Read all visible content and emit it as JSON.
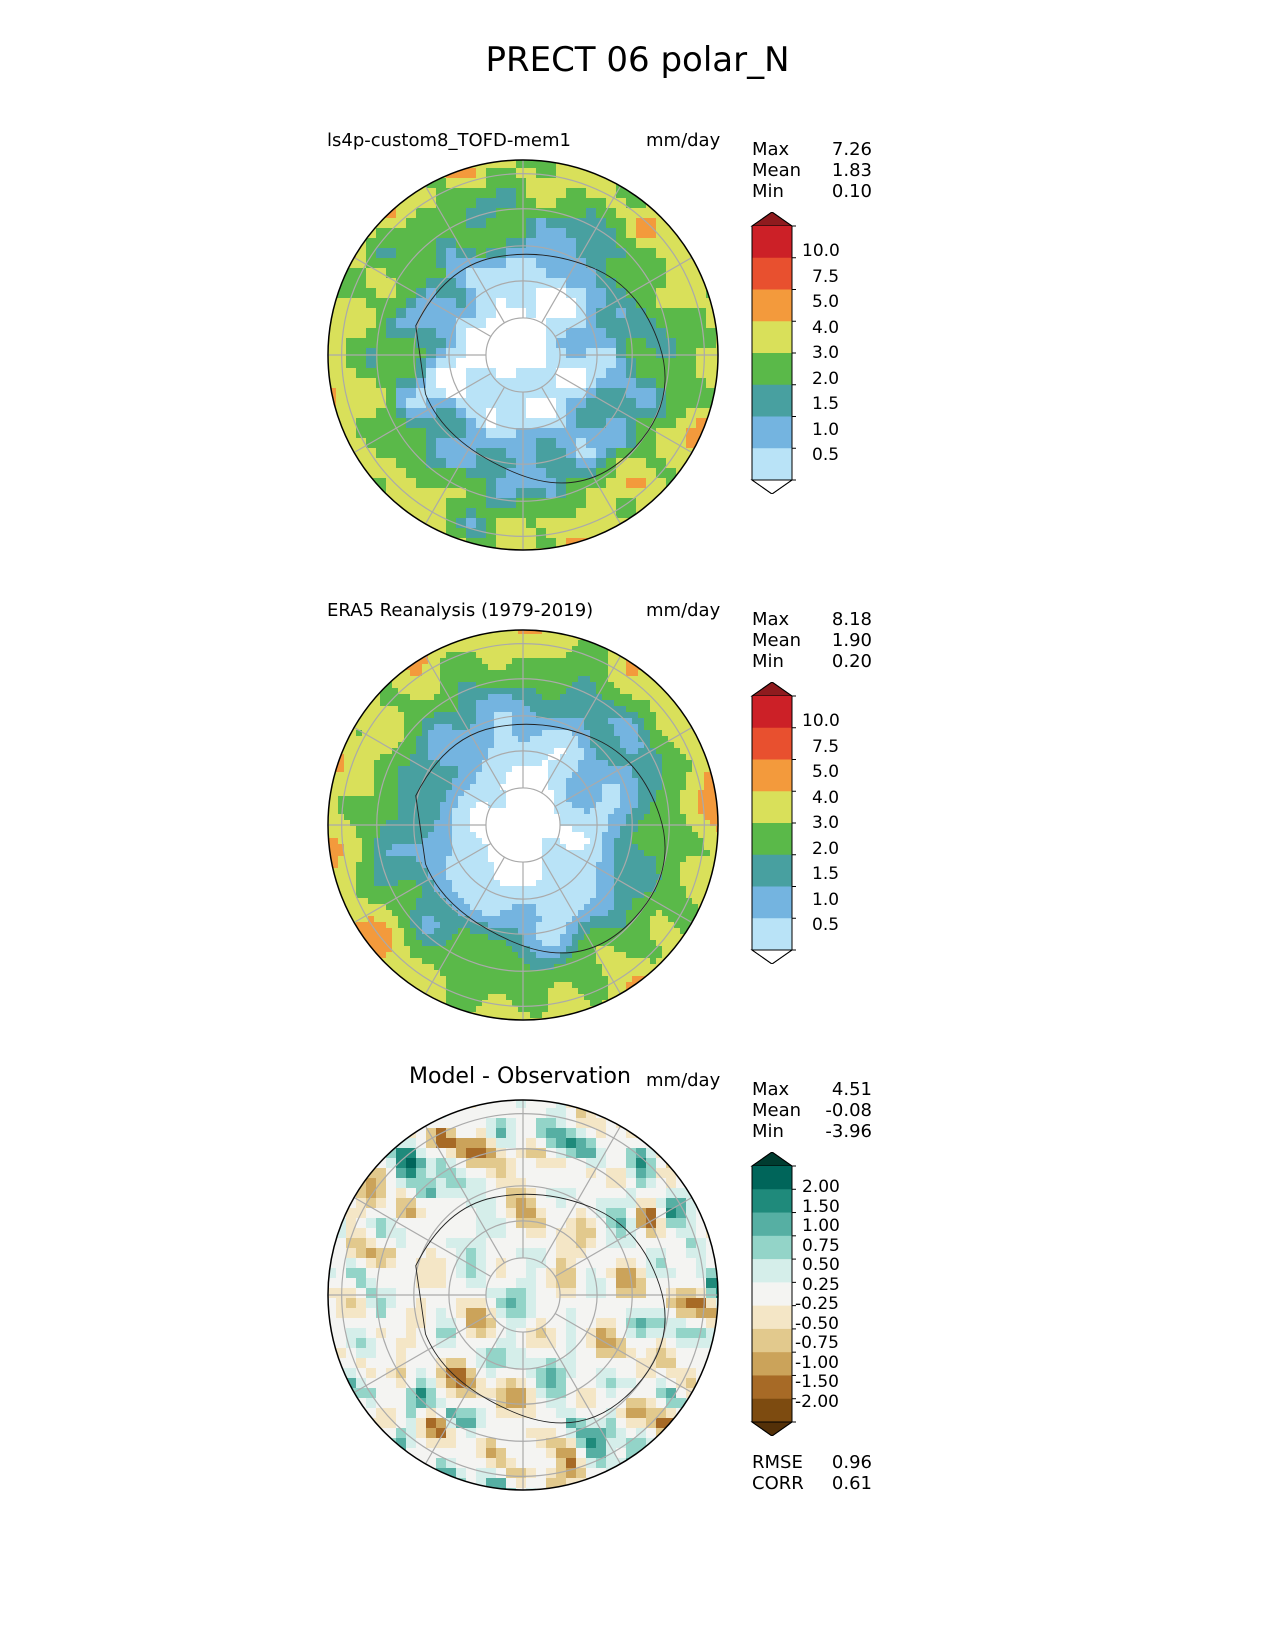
{
  "figure": {
    "title": "PRECT 06 polar_N"
  },
  "panels": [
    {
      "id": "test",
      "title": "ls4p-custom8_TOFD-mem1",
      "units": "mm/day",
      "stats": [
        {
          "label": "Max",
          "value": "7.26"
        },
        {
          "label": "Mean",
          "value": "1.83"
        },
        {
          "label": "Min",
          "value": "0.10"
        }
      ],
      "colorbar": {
        "ticks": [
          "10.0",
          "7.5",
          "5.0",
          "4.0",
          "3.0",
          "2.0",
          "1.5",
          "1.0",
          "0.5"
        ],
        "colors": [
          "#ffffff",
          "#b9e3f7",
          "#74b4e0",
          "#48a0a0",
          "#5ab949",
          "#d9e05a",
          "#f39a3c",
          "#e8502f",
          "#cc2027",
          "#8e1b1e"
        ]
      }
    },
    {
      "id": "reference",
      "title": "ERA5 Reanalysis (1979-2019)",
      "units": "mm/day",
      "stats": [
        {
          "label": "Max",
          "value": "8.18"
        },
        {
          "label": "Mean",
          "value": "1.90"
        },
        {
          "label": "Min",
          "value": "0.20"
        }
      ],
      "colorbar": {
        "ticks": [
          "10.0",
          "7.5",
          "5.0",
          "4.0",
          "3.0",
          "2.0",
          "1.5",
          "1.0",
          "0.5"
        ],
        "colors": [
          "#ffffff",
          "#b9e3f7",
          "#74b4e0",
          "#48a0a0",
          "#5ab949",
          "#d9e05a",
          "#f39a3c",
          "#e8502f",
          "#cc2027",
          "#8e1b1e"
        ]
      }
    },
    {
      "id": "diff",
      "title": "Model - Observation",
      "units": "mm/day",
      "stats": [
        {
          "label": "Max",
          "value": "4.51"
        },
        {
          "label": "Mean",
          "value": "-0.08"
        },
        {
          "label": "Min",
          "value": "-3.96"
        }
      ],
      "colorbar": {
        "ticks": [
          "2.00",
          "1.50",
          "1.00",
          "0.75",
          "0.50",
          "0.25",
          "-0.25",
          "-0.50",
          "-0.75",
          "-1.00",
          "-1.50",
          "-2.00"
        ],
        "colors": [
          "#533008",
          "#7d4b10",
          "#a76a26",
          "#cba35a",
          "#e2c98d",
          "#f4e6c6",
          "#f4f4f2",
          "#d5eeea",
          "#93d4c8",
          "#56afa3",
          "#1f8a7b",
          "#00655a",
          "#003c30"
        ]
      }
    }
  ],
  "summary": [
    {
      "label": "RMSE",
      "value": "0.96"
    },
    {
      "label": "CORR",
      "value": "0.61"
    }
  ]
}
